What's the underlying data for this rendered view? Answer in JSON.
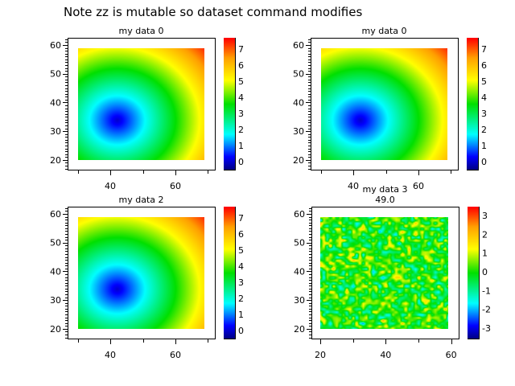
{
  "title": "Note zz is mutable so dataset command modifies",
  "colors": {
    "background": "#ffffff",
    "axis": "#000000"
  },
  "colormap": [
    "#000080",
    "#0000ff",
    "#00ffff",
    "#00e000",
    "#ffff00",
    "#ffa000",
    "#ff0000"
  ],
  "chart_data": [
    {
      "type": "heatmap",
      "title": "my data 0",
      "subtitle": "",
      "xlim": [
        26.9,
        72.1
      ],
      "ylim": [
        16.6,
        62.5
      ],
      "image_extent": {
        "x": [
          30,
          69
        ],
        "y": [
          20,
          59
        ]
      },
      "xticks": [
        40,
        60
      ],
      "yticks": [
        20,
        30,
        40,
        50,
        60
      ],
      "colorbar": {
        "range": [
          -0.5,
          7.7
        ],
        "ticks": [
          0,
          1,
          2,
          3,
          4,
          5,
          6,
          7
        ]
      },
      "pattern": "radial",
      "minimum_at": [
        42,
        34
      ]
    },
    {
      "type": "heatmap",
      "title": "my data 0",
      "subtitle": "",
      "xlim": [
        26.9,
        72.1
      ],
      "ylim": [
        16.6,
        62.5
      ],
      "image_extent": {
        "x": [
          30,
          69
        ],
        "y": [
          20,
          59
        ]
      },
      "xticks": [
        40,
        60
      ],
      "yticks": [
        20,
        30,
        40,
        50,
        60
      ],
      "colorbar": {
        "range": [
          -0.5,
          7.7
        ],
        "ticks": [
          0,
          1,
          2,
          3,
          4,
          5,
          6,
          7
        ]
      },
      "pattern": "radial",
      "minimum_at": [
        42,
        34
      ]
    },
    {
      "type": "heatmap",
      "title": "my data 2",
      "subtitle": "",
      "xlim": [
        26.9,
        72.1
      ],
      "ylim": [
        16.6,
        62.5
      ],
      "image_extent": {
        "x": [
          30,
          69
        ],
        "y": [
          20,
          59
        ]
      },
      "xticks": [
        40,
        60
      ],
      "yticks": [
        20,
        30,
        40,
        50,
        60
      ],
      "colorbar": {
        "range": [
          -0.5,
          7.7
        ],
        "ticks": [
          0,
          1,
          2,
          3,
          4,
          5,
          6,
          7
        ]
      },
      "pattern": "radial",
      "minimum_at": [
        42,
        34
      ]
    },
    {
      "type": "heatmap",
      "title": "my data 3",
      "subtitle": "49.0",
      "xlim": [
        17.3,
        62.3
      ],
      "ylim": [
        16.6,
        62.5
      ],
      "image_extent": {
        "x": [
          20,
          59
        ],
        "y": [
          20,
          59
        ]
      },
      "xticks": [
        20,
        40,
        60
      ],
      "yticks": [
        20,
        30,
        40,
        50,
        60
      ],
      "colorbar": {
        "range": [
          -3.56,
          3.47
        ],
        "ticks": [
          -3,
          -2,
          -1,
          0,
          1,
          2,
          3
        ]
      },
      "pattern": "noise"
    }
  ]
}
